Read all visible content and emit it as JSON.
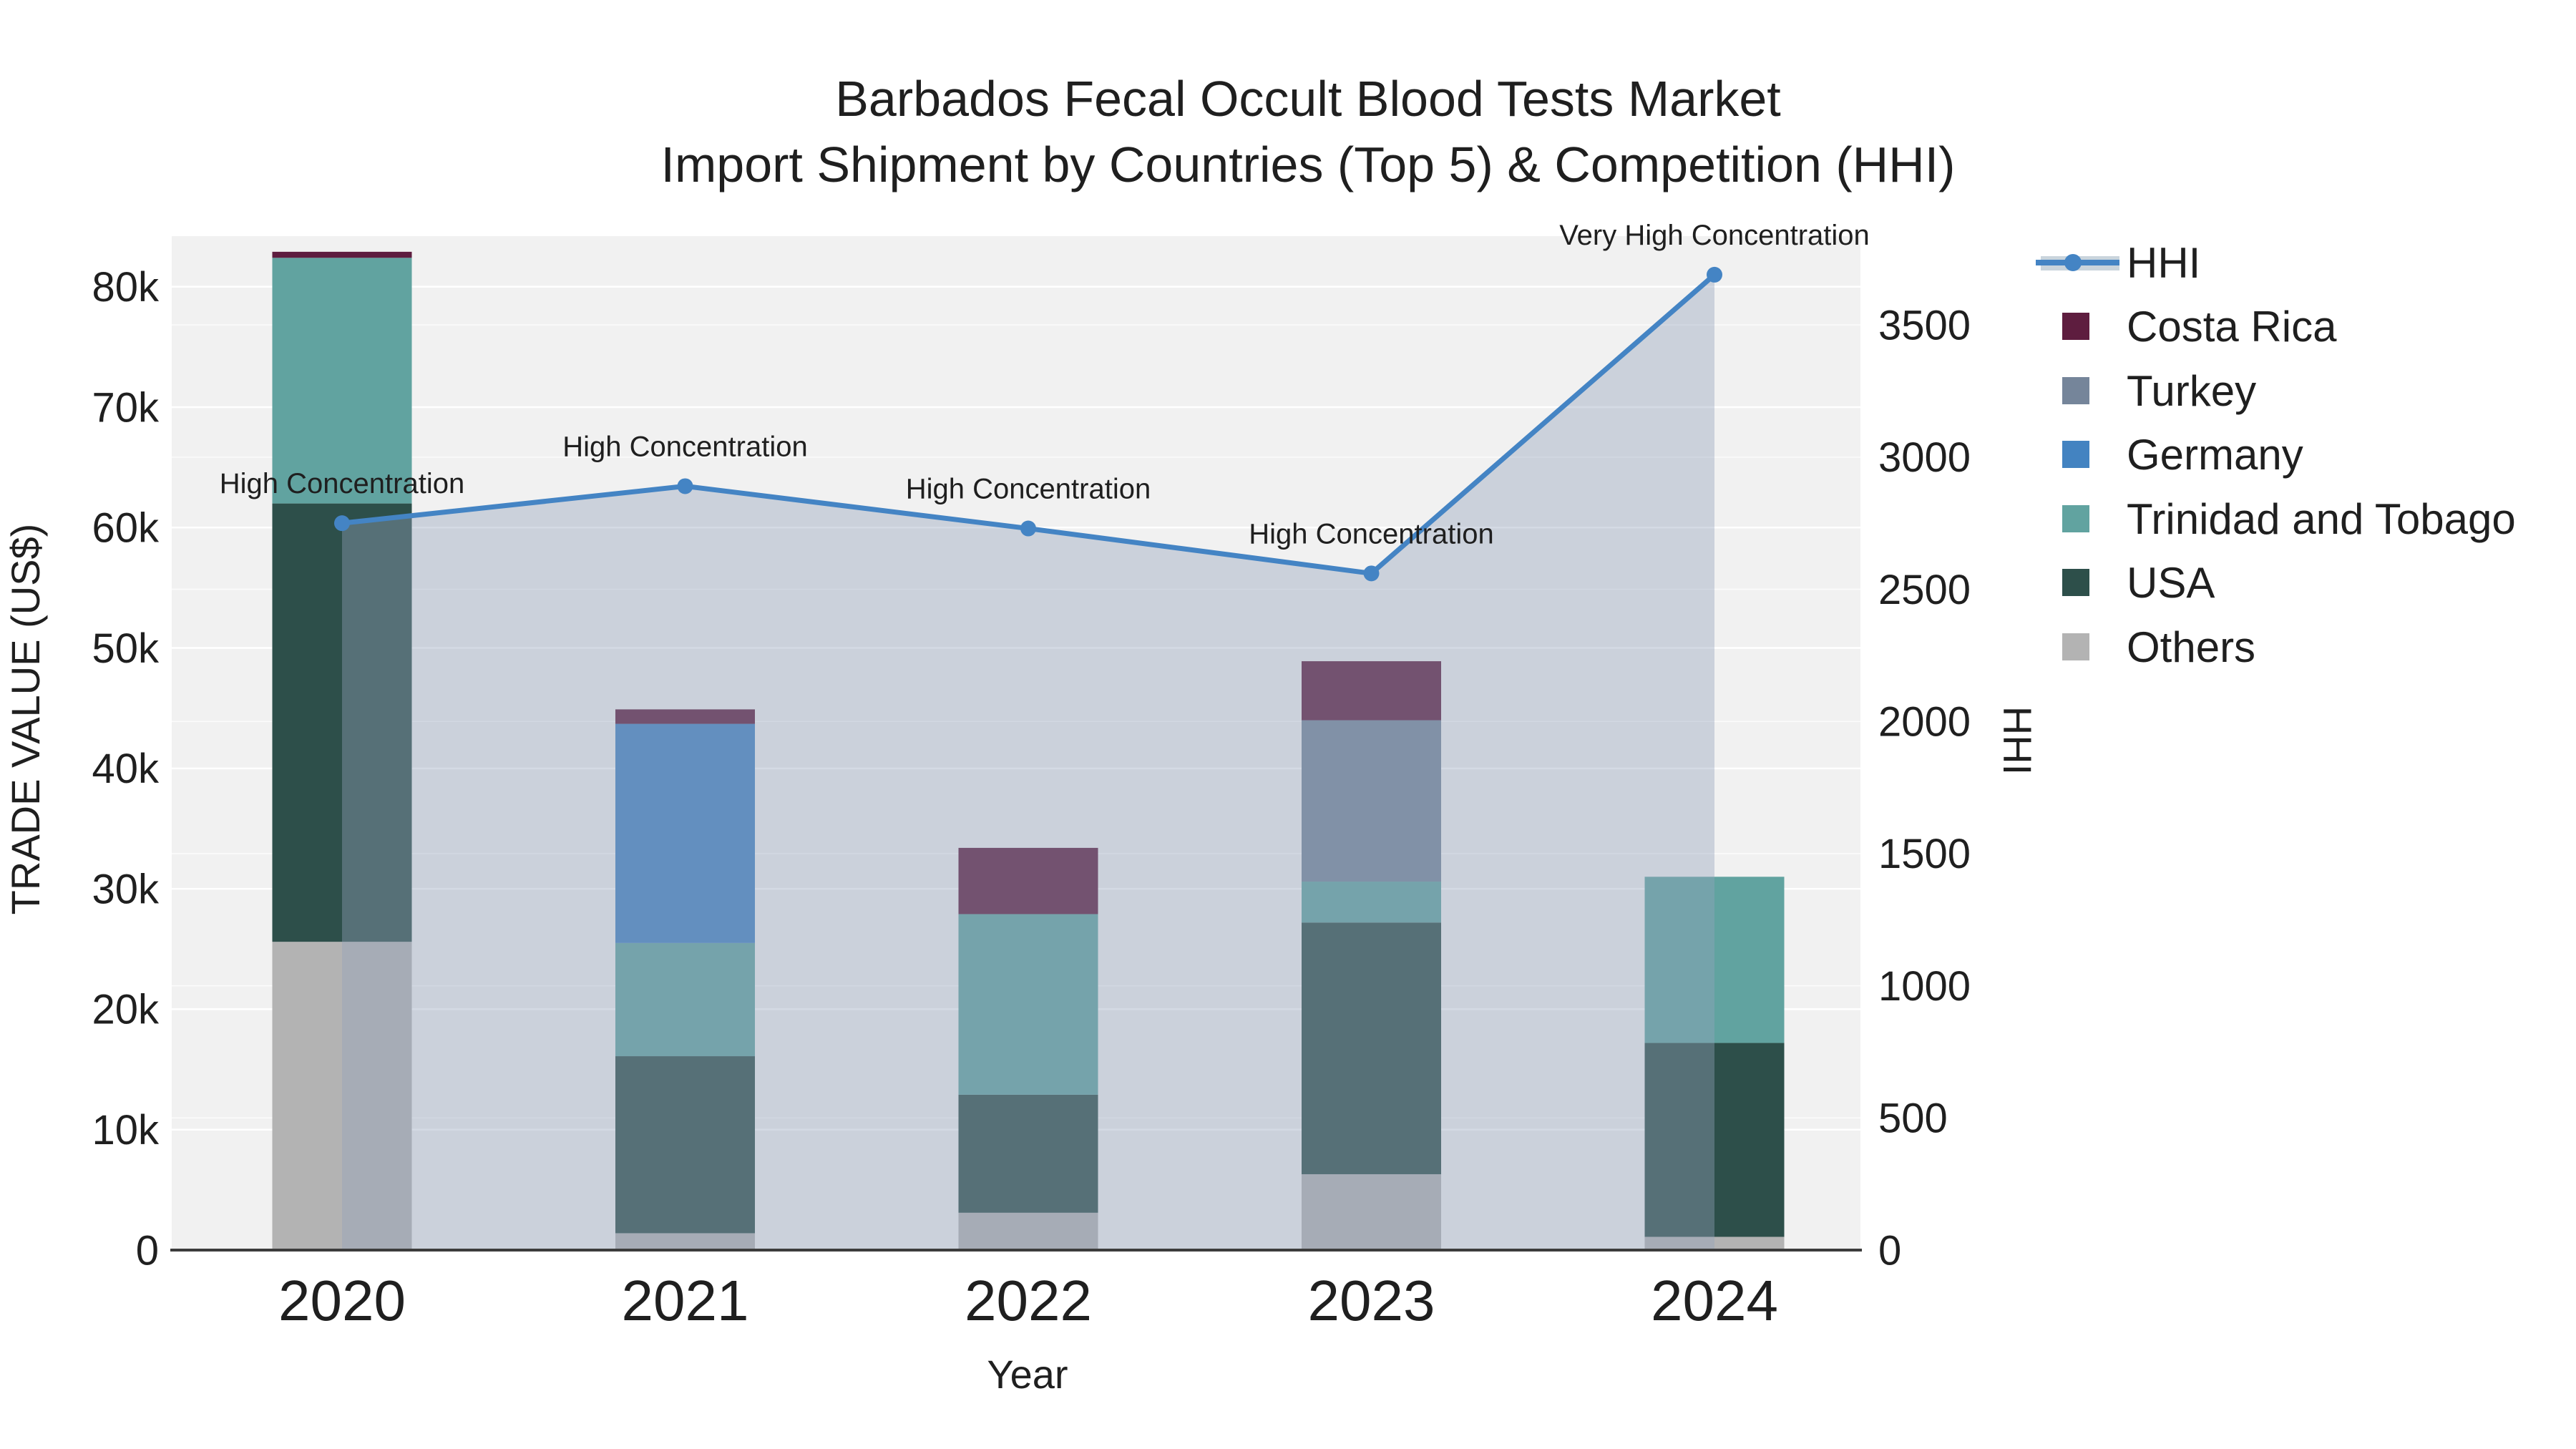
{
  "title": {
    "line1": "Barbados Fecal Occult Blood Tests Market",
    "line2": "Import Shipment by Countries (Top 5) & Competition (HHI)"
  },
  "axes": {
    "x": {
      "title": "Year",
      "categories": [
        "2020",
        "2021",
        "2022",
        "2023",
        "2024"
      ]
    },
    "y_left": {
      "title": "TRADE VALUE (US$)",
      "tick_labels": [
        "0",
        "10k",
        "20k",
        "30k",
        "40k",
        "50k",
        "60k",
        "70k",
        "80k"
      ],
      "tick_values": [
        0,
        10000,
        20000,
        30000,
        40000,
        50000,
        60000,
        70000,
        80000
      ],
      "range": [
        0,
        84200
      ]
    },
    "y_right": {
      "title": "HHI",
      "tick_labels": [
        "0",
        "500",
        "1000",
        "1500",
        "2000",
        "2500",
        "3000",
        "3500"
      ],
      "tick_values": [
        0,
        500,
        1000,
        1500,
        2000,
        2500,
        3000,
        3500
      ],
      "range": [
        0,
        3836
      ]
    }
  },
  "legend": {
    "items": [
      {
        "label": "HHI",
        "type": "line",
        "color": "#4484c4",
        "band_color": "#c9d4dc"
      },
      {
        "label": "Costa Rica",
        "type": "square",
        "color": "#5e1d3f"
      },
      {
        "label": "Turkey",
        "type": "square",
        "color": "#75859a"
      },
      {
        "label": "Germany",
        "type": "square",
        "color": "#4383c1"
      },
      {
        "label": "Trinidad and Tobago",
        "type": "square",
        "color": "#61a3a0"
      },
      {
        "label": "USA",
        "type": "square",
        "color": "#2d4f4a"
      },
      {
        "label": "Others",
        "type": "square",
        "color": "#b3b3b3"
      }
    ]
  },
  "chart_data": {
    "type": "combo",
    "subtype": "stacked-bar + line on secondary axis",
    "title": "Barbados Fecal Occult Blood Tests Market — Import Shipment by Countries (Top 5) & Competition (HHI)",
    "categories": [
      "2020",
      "2021",
      "2022",
      "2023",
      "2024"
    ],
    "bar_unit": "US$ (trade value)",
    "series": [
      {
        "name": "Others",
        "color": "#b3b3b3",
        "values": [
          25600,
          1400,
          3100,
          6300,
          1100
        ]
      },
      {
        "name": "USA",
        "color": "#2d4f4a",
        "values": [
          36400,
          14700,
          9800,
          20900,
          16100
        ]
      },
      {
        "name": "Trinidad and Tobago",
        "color": "#61a3a0",
        "values": [
          20400,
          9400,
          15000,
          3400,
          13800
        ]
      },
      {
        "name": "Germany",
        "color": "#4383c1",
        "values": [
          0,
          18200,
          0,
          0,
          0
        ]
      },
      {
        "name": "Turkey",
        "color": "#75859a",
        "values": [
          0,
          0,
          0,
          13400,
          0
        ]
      },
      {
        "name": "Costa Rica",
        "color": "#5e1d3f",
        "values": [
          500,
          1200,
          5500,
          4900,
          0
        ]
      }
    ],
    "bar_totals": [
      82900,
      44900,
      33400,
      48900,
      31000
    ],
    "line": {
      "name": "HHI",
      "axis": "right",
      "color": "#4484c4",
      "area_fill": "rgba(148,162,188,0.40)",
      "values": [
        2750,
        2890,
        2730,
        2560,
        3690
      ]
    },
    "annotations": [
      "High Concentration",
      "High Concentration",
      "High Concentration",
      "High Concentration",
      "Very High Concentration"
    ],
    "xlabel": "Year",
    "ylabel_left": "TRADE VALUE (US$)",
    "ylabel_right": "HHI",
    "ylim_left": [
      0,
      84200
    ],
    "ylim_right": [
      0,
      3836
    ],
    "grid": true,
    "grid_color": "#ffffff",
    "plot_bg": "#f1f1f1",
    "legend_position": "top-right"
  }
}
